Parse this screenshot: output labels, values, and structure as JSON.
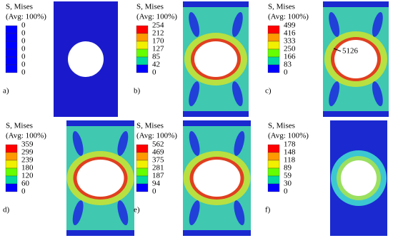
{
  "panels": [
    {
      "title": "S, Mises",
      "subtitle": "(Avg: 100%)",
      "ticks": [
        "0",
        "0",
        "0",
        "0",
        "0",
        "0",
        "0"
      ],
      "label": "a)"
    },
    {
      "title": "S, Mises",
      "subtitle": "(Avg: 100%)",
      "ticks": [
        "254",
        "212",
        "170",
        "127",
        "85",
        "42",
        "0"
      ],
      "label": "b)"
    },
    {
      "title": "S, Mises",
      "subtitle": "(Avg: 100%)",
      "ticks": [
        "499",
        "416",
        "333",
        "250",
        "166",
        "83",
        "0"
      ],
      "label": "c)",
      "annotation": "5126"
    },
    {
      "title": "S, Mises",
      "subtitle": "(Avg: 100%)",
      "ticks": [
        "359",
        "299",
        "239",
        "180",
        "120",
        "60",
        "0"
      ],
      "label": "d)"
    },
    {
      "title": "S, Mises",
      "subtitle": "(Avg: 100%)",
      "ticks": [
        "562",
        "469",
        "375",
        "281",
        "187",
        "94",
        "0"
      ],
      "label": "e)"
    },
    {
      "title": "S, Mises",
      "subtitle": "(Avg: 100%)",
      "ticks": [
        "178",
        "148",
        "118",
        "89",
        "59",
        "30",
        "0"
      ],
      "label": "f)"
    }
  ]
}
